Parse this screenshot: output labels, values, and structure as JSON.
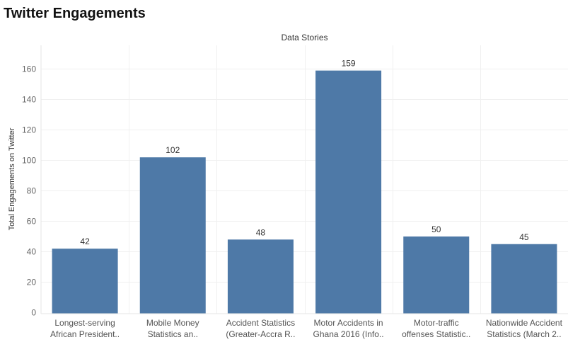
{
  "title": "Twitter Engagements",
  "chart_data": {
    "type": "bar",
    "title": "Twitter Engagements",
    "header": "Data Stories",
    "xlabel": "",
    "ylabel": "Total Engagements on Twitter",
    "categories": [
      [
        "Longest-serving",
        "African President.."
      ],
      [
        "Mobile Money",
        "Statistics an.."
      ],
      [
        "Accident Statistics",
        "(Greater-Accra R.."
      ],
      [
        "Motor Accidents in",
        "Ghana 2016 (Info.."
      ],
      [
        "Motor-traffic",
        "offenses Statistic.."
      ],
      [
        "Nationwide Accident",
        "Statistics (March 2.."
      ]
    ],
    "values": [
      42,
      102,
      48,
      159,
      50,
      45
    ],
    "data_labels": [
      "42",
      "102",
      "48",
      "159",
      "50",
      "45"
    ],
    "yticks": [
      0,
      20,
      40,
      60,
      80,
      100,
      120,
      140,
      160
    ],
    "ylim": [
      0,
      170
    ],
    "grid": true,
    "bar_color": "#4e79a7"
  }
}
